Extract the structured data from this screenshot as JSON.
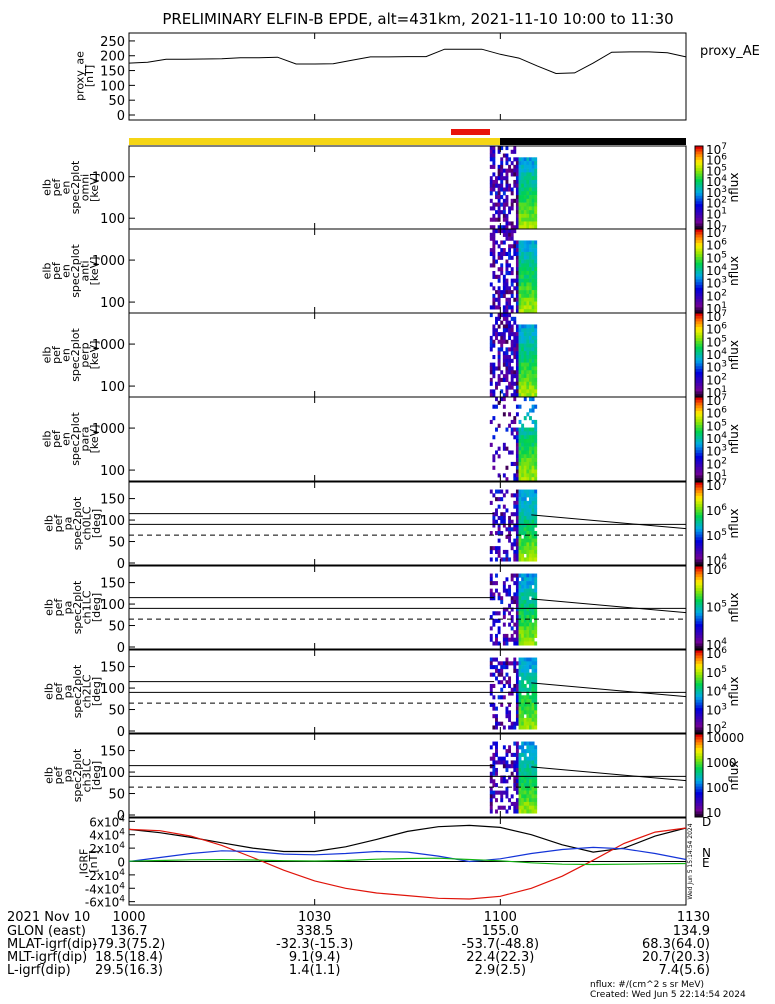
{
  "title": "PRELIMINARY ELFIN-B EPDE, alt=431km, 2021-11-10 10:00 to 11:30",
  "colors": {
    "sun_bar": "#f5d515",
    "shadow_bar": "#000000",
    "science_bar": "#e8140a",
    "bx": "#e0140a",
    "by": "#1434d8",
    "bz": "#14b414",
    "btotal": "#000000"
  },
  "chart_data": [
    {
      "type": "line",
      "name_label": "proxy_AE",
      "ylabel_lines": [
        "proxy_ae",
        "[nT]"
      ],
      "ylim": [
        0,
        270
      ],
      "yticks": [
        "0",
        "50",
        "100",
        "150",
        "200",
        "250"
      ],
      "ytick_values": [
        0,
        50,
        100,
        150,
        200,
        250
      ],
      "x_minutes": [
        0,
        3,
        6,
        9,
        12,
        15,
        18,
        21,
        24,
        27,
        30,
        33,
        36,
        39,
        42,
        45,
        48,
        51,
        54,
        57,
        60,
        63,
        66,
        69,
        72,
        75,
        78,
        81,
        84,
        87,
        90
      ],
      "values": [
        175,
        178,
        188,
        188,
        189,
        190,
        193,
        193,
        195,
        172,
        172,
        173,
        185,
        196,
        196,
        197,
        197,
        222,
        222,
        222,
        205,
        192,
        165,
        140,
        142,
        175,
        212,
        213,
        213,
        210,
        196
      ]
    },
    {
      "type": "heatmap",
      "ylabel_lines": [
        "elb",
        "pef",
        "en",
        "spec2plot",
        "omni",
        "[keV]"
      ],
      "yticks": [
        "100",
        "1000"
      ],
      "cb_label": "nflux",
      "cb_ticks": [
        "10",
        "10^1",
        "10^2",
        "10^3",
        "10^4",
        "10^5",
        "10^6",
        "10^7"
      ]
    },
    {
      "type": "heatmap",
      "ylabel_lines": [
        "elb",
        "pef",
        "en",
        "spec2plot",
        "anti",
        "[keV]"
      ],
      "yticks": [
        "100",
        "1000"
      ],
      "cb_label": "nflux",
      "cb_ticks": [
        "10^1",
        "10^2",
        "10^3",
        "10^4",
        "10^5",
        "10^6",
        "10^7"
      ]
    },
    {
      "type": "heatmap",
      "ylabel_lines": [
        "elb",
        "pef",
        "en",
        "spec2plot",
        "perp",
        "[keV]"
      ],
      "yticks": [
        "100",
        "1000"
      ],
      "cb_label": "nflux",
      "cb_ticks": [
        "10^1",
        "10^2",
        "10^3",
        "10^4",
        "10^5",
        "10^6",
        "10^7"
      ]
    },
    {
      "type": "heatmap",
      "ylabel_lines": [
        "elb",
        "pef",
        "en",
        "spec2plot",
        "para",
        "[keV]"
      ],
      "yticks": [
        "100",
        "1000"
      ],
      "cb_label": "nflux",
      "cb_ticks": [
        "10^1",
        "10^2",
        "10^3",
        "10^4",
        "10^5",
        "10^6",
        "10^7"
      ]
    },
    {
      "type": "heatmap",
      "ylabel_lines": [
        "elb",
        "pef",
        "pa",
        "spec2plot",
        "ch0LC",
        "[deg]"
      ],
      "yticks": [
        "0",
        "50",
        "100",
        "150"
      ],
      "cb_label": "nflux",
      "cb_ticks": [
        "10^4",
        "10^5",
        "10^6",
        "10^7"
      ]
    },
    {
      "type": "heatmap",
      "ylabel_lines": [
        "elb",
        "pef",
        "pa",
        "spec2plot",
        "ch1LC",
        "[deg]"
      ],
      "yticks": [
        "0",
        "50",
        "100",
        "150"
      ],
      "cb_label": "nflux",
      "cb_ticks": [
        "10^4",
        "10^5",
        "10^6"
      ]
    },
    {
      "type": "heatmap",
      "ylabel_lines": [
        "elb",
        "pef",
        "pa",
        "spec2plot",
        "ch2LC",
        "[deg]"
      ],
      "yticks": [
        "0",
        "50",
        "100",
        "150"
      ],
      "cb_label": "nflux",
      "cb_ticks": [
        "10^2",
        "10^3",
        "10^4",
        "10^5",
        "10^6"
      ]
    },
    {
      "type": "heatmap",
      "ylabel_lines": [
        "elb",
        "pef",
        "pa",
        "spec2plot",
        "ch3LC",
        "[deg]"
      ],
      "yticks": [
        "0",
        "50",
        "100",
        "150"
      ],
      "cb_label": "nflux",
      "cb_ticks": [
        "10",
        "100",
        "1000",
        "10000"
      ]
    },
    {
      "type": "line",
      "ylabel_lines": [
        "IGRF",
        "[nT]"
      ],
      "ylim": [
        -65000,
        65000
      ],
      "yticks": [
        "-6x10^4",
        "-4x10^4",
        "-2x10^4",
        "0",
        "2x10^4",
        "4x10^4",
        "6x10^4"
      ],
      "ytick_values": [
        -60000,
        -40000,
        -20000,
        0,
        20000,
        40000,
        60000
      ],
      "side_labels": [
        "D",
        "N",
        "E"
      ],
      "side_note": "Wed Jun  5 15:14:54 2024",
      "x_minutes": [
        0,
        5,
        10,
        15,
        20,
        25,
        30,
        35,
        40,
        45,
        50,
        55,
        60,
        65,
        70,
        75,
        80,
        85,
        90
      ],
      "series": [
        {
          "key": "black",
          "values": [
            48000,
            43000,
            36000,
            28000,
            20000,
            15000,
            15000,
            22000,
            33000,
            45000,
            52000,
            54000,
            51000,
            40000,
            25000,
            14000,
            20000,
            38000,
            50000
          ]
        },
        {
          "key": "red",
          "values": [
            48000,
            46000,
            38000,
            24000,
            6000,
            -13000,
            -29000,
            -40000,
            -47000,
            -51000,
            -55000,
            -56000,
            -52000,
            -40000,
            -22000,
            2000,
            27000,
            44000,
            50000
          ]
        },
        {
          "key": "blue",
          "values": [
            0,
            6000,
            12000,
            16000,
            15000,
            11000,
            10000,
            12000,
            15000,
            14000,
            8000,
            0,
            4000,
            12000,
            18000,
            21000,
            19000,
            12000,
            3000
          ]
        },
        {
          "key": "green",
          "values": [
            500,
            1500,
            2500,
            2800,
            2200,
            1200,
            800,
            1500,
            3500,
            4500,
            5000,
            3000,
            1000,
            -2000,
            -4000,
            -4500,
            -4000,
            -3500,
            -3000
          ]
        }
      ]
    }
  ],
  "xaxis": {
    "row_labels": [
      "2021 Nov 10",
      "GLON (east)",
      "MLAT-igrf(dip)",
      "MLT-igrf(dip)",
      "L-igrf(dip)"
    ],
    "ticks": [
      {
        "minute": 0,
        "values": [
          "1000",
          "136.7",
          "-79.3(75.2)",
          "18.5(18.4)",
          "29.5(16.3)"
        ]
      },
      {
        "minute": 30,
        "values": [
          "1030",
          "338.5",
          "-32.3(-15.3)",
          "9.1(9.4)",
          "1.4(1.1)"
        ]
      },
      {
        "minute": 60,
        "values": [
          "1100",
          "155.0",
          "-53.7(-48.8)",
          "22.4(22.3)",
          "2.9(2.5)"
        ]
      },
      {
        "minute": 90,
        "values": [
          "1130",
          "134.9",
          "68.3(64.0)",
          "20.7(20.3)",
          "7.4(5.6)"
        ]
      }
    ]
  },
  "footer": {
    "units": "nflux: #/(cm^2 s sr MeV)",
    "created": "Created: Wed Jun  5 22:14:54 2024"
  }
}
